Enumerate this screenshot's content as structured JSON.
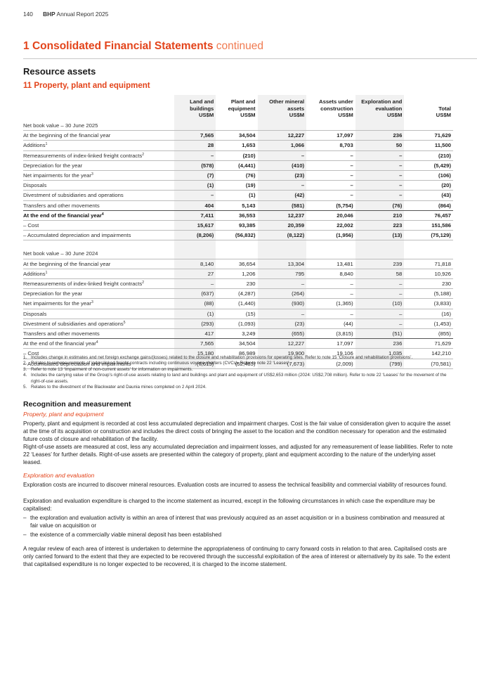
{
  "header": {
    "page_number": "140",
    "brand": "BHP",
    "report": "Annual Report 2025"
  },
  "section": {
    "number": "1",
    "title": "Consolidated Financial Statements",
    "continued": "continued"
  },
  "subheading": "Resource assets",
  "note_title": "11 Property, plant and equipment",
  "table": {
    "columns": [
      {
        "line1": "Land and",
        "line2": "buildings",
        "line3": "US$M"
      },
      {
        "line1": "Plant and",
        "line2": "equipment",
        "line3": "US$M"
      },
      {
        "line1": "Other mineral",
        "line2": "assets",
        "line3": "US$M"
      },
      {
        "line1": "Assets under",
        "line2": "construction",
        "line3": "US$M"
      },
      {
        "line1": "Exploration and",
        "line2": "evaluation",
        "line3": "US$M"
      },
      {
        "line1": "",
        "line2": "Total",
        "line3": "US$M"
      }
    ],
    "y2025": {
      "heading": "Net book value – 30 June 2025",
      "rows": [
        {
          "label": "At the beginning of the financial year",
          "sup": "",
          "values": [
            "7,565",
            "34,504",
            "12,227",
            "17,097",
            "236",
            "71,629"
          ]
        },
        {
          "label": "Additions",
          "sup": "1",
          "values": [
            "28",
            "1,653",
            "1,066",
            "8,703",
            "50",
            "11,500"
          ]
        },
        {
          "label": "Remeasurements of index-linked freight contracts",
          "sup": "2",
          "values": [
            "–",
            "(210)",
            "–",
            "–",
            "–",
            "(210)"
          ]
        },
        {
          "label": "Depreciation for the year",
          "sup": "",
          "values": [
            "(578)",
            "(4,441)",
            "(410)",
            "–",
            "–",
            "(5,429)"
          ]
        },
        {
          "label": "Net impairments for the year",
          "sup": "3",
          "values": [
            "(7)",
            "(76)",
            "(23)",
            "–",
            "–",
            "(106)"
          ]
        },
        {
          "label": "Disposals",
          "sup": "",
          "values": [
            "(1)",
            "(19)",
            "–",
            "–",
            "–",
            "(20)"
          ]
        },
        {
          "label": "Divestment of subsidiaries and operations",
          "sup": "",
          "values": [
            "–",
            "(1)",
            "(42)",
            "–",
            "–",
            "(43)"
          ]
        },
        {
          "label": "Transfers and other movements",
          "sup": "",
          "values": [
            "404",
            "5,143",
            "(581)",
            "(5,754)",
            "(76)",
            "(864)"
          ]
        }
      ],
      "end": {
        "label": "At the end of the financial year",
        "sup": "4",
        "values": [
          "7,411",
          "36,553",
          "12,237",
          "20,046",
          "210",
          "76,457"
        ]
      },
      "cost": {
        "label": "–  Cost",
        "values": [
          "15,617",
          "93,385",
          "20,359",
          "22,002",
          "223",
          "151,586"
        ]
      },
      "accum": {
        "label": "–  Accumulated depreciation and impairments",
        "values": [
          "(8,206)",
          "(56,832)",
          "(8,122)",
          "(1,956)",
          "(13)",
          "(75,129)"
        ]
      }
    },
    "y2024": {
      "heading": "Net book value – 30 June 2024",
      "rows": [
        {
          "label": "At the beginning of the financial year",
          "sup": "",
          "values": [
            "8,140",
            "36,654",
            "13,304",
            "13,481",
            "239",
            "71,818"
          ]
        },
        {
          "label": "Additions",
          "sup": "1",
          "values": [
            "27",
            "1,206",
            "795",
            "8,840",
            "58",
            "10,926"
          ]
        },
        {
          "label": "Remeasurements of index-linked freight contracts",
          "sup": "2",
          "values": [
            "–",
            "230",
            "–",
            "–",
            "–",
            "230"
          ]
        },
        {
          "label": "Depreciation for the year",
          "sup": "",
          "values": [
            "(637)",
            "(4,287)",
            "(264)",
            "–",
            "–",
            "(5,188)"
          ]
        },
        {
          "label": "Net impairments for the year",
          "sup": "3",
          "values": [
            "(88)",
            "(1,440)",
            "(930)",
            "(1,365)",
            "(10)",
            "(3,833)"
          ]
        },
        {
          "label": "Disposals",
          "sup": "",
          "values": [
            "(1)",
            "(15)",
            "–",
            "–",
            "–",
            "(16)"
          ]
        },
        {
          "label": "Divestment of subsidiaries and operations",
          "sup": "5",
          "values": [
            "(293)",
            "(1,093)",
            "(23)",
            "(44)",
            "–",
            "(1,453)"
          ]
        },
        {
          "label": "Transfers and other movements",
          "sup": "",
          "values": [
            "417",
            "3,249",
            "(655)",
            "(3,815)",
            "(51)",
            "(855)"
          ]
        }
      ],
      "end": {
        "label": "At the end of the financial year",
        "sup": "4",
        "values": [
          "7,565",
          "34,504",
          "12,227",
          "17,097",
          "236",
          "71,629"
        ]
      },
      "cost": {
        "label": "–  Cost",
        "values": [
          "15,180",
          "86,989",
          "19,900",
          "19,106",
          "1,035",
          "142,210"
        ]
      },
      "accum": {
        "label": "–  Accumulated depreciation and impairments",
        "values": [
          "(7,615)",
          "(52,485)",
          "(7,673)",
          "(2,009)",
          "(799)",
          "(70,581)"
        ]
      }
    }
  },
  "footnotes": [
    {
      "n": "1.",
      "text": "Includes change in estimates and net foreign exchange gains/(losses) related to the closure and rehabilitation provisions for operating sites. Refer to note 15 ‘Closure and rehabilitation provisions’."
    },
    {
      "n": "2.",
      "text": "Relates to remeasurements of index-linked freight contracts including continuous voyage charters (CVCs). Refer to note 22 ‘Leases’."
    },
    {
      "n": "3.",
      "text": "Refer to note 13 ‘Impairment of non-current assets’ for information on impairments."
    },
    {
      "n": "4.",
      "text": "Includes the carrying value of the Group’s right-of-use assets relating to land and buildings and plant and equipment of US$2,653 million (2024: US$2,708 million). Refer to note 22 ‘Leases’ for the movement of the right-of-use assets."
    },
    {
      "n": "5.",
      "text": "Relates to the divestment of the Blackwater and Daunia mines completed on 2 April 2024."
    }
  ],
  "recognition": {
    "title": "Recognition and measurement",
    "ppe_title": "Property, plant and equipment",
    "ppe_p1": "Property, plant and equipment is recorded at cost less accumulated depreciation and impairment charges. Cost is the fair value of consideration given to acquire the asset at the time of its acquisition or construction and includes the direct costs of bringing the asset to the location and the condition necessary for operation and the estimated future costs of closure and rehabilitation of the facility.",
    "ppe_p2": "Right-of-use assets are measured at cost, less any accumulated depreciation and impairment losses, and adjusted for any remeasurement of lease liabilities. Refer to note 22 ‘Leases’ for further details. Right-of-use assets are presented within the category of property, plant and equipment according to the nature of the underlying asset leased.",
    "ee_title": "Exploration and evaluation",
    "ee_p1": "Exploration costs are incurred to discover mineral resources. Evaluation costs are incurred to assess the technical feasibility and commercial viability of resources found.",
    "ee_p2": "Exploration and evaluation expenditure is charged to the income statement as incurred, except in the following circumstances in which case the expenditure may be capitalised:",
    "bullet1": "the exploration and evaluation activity is within an area of interest that was previously acquired as an asset acquisition or in a business combination and measured at fair value on acquisition or",
    "bullet2": "the existence of a commercially viable mineral deposit has been established",
    "ee_p3": "A regular review of each area of interest is undertaken to determine the appropriateness of continuing to carry forward costs in relation to that area. Capitalised costs are only carried forward to the extent that they are expected to be recovered through the successful exploitation of the area of interest or alternatively by its sale. To the extent that capitalised expenditure is no longer expected to be recovered, it is charged to the income statement."
  }
}
